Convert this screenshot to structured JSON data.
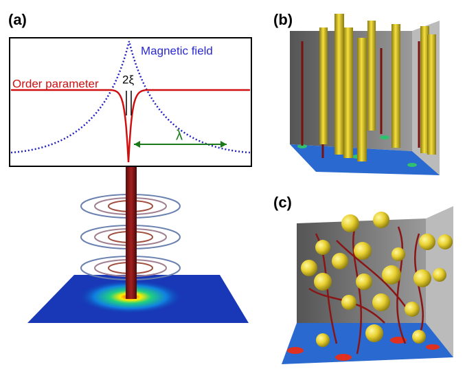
{
  "panels": {
    "a": {
      "label": "(a)",
      "magnetic_field": "Magnetic field",
      "order_parameter": "Order parameter",
      "coherence": "2ξ",
      "penetration": "λ"
    },
    "b": {
      "label": "(b)"
    },
    "c": {
      "label": "(c)"
    }
  }
}
